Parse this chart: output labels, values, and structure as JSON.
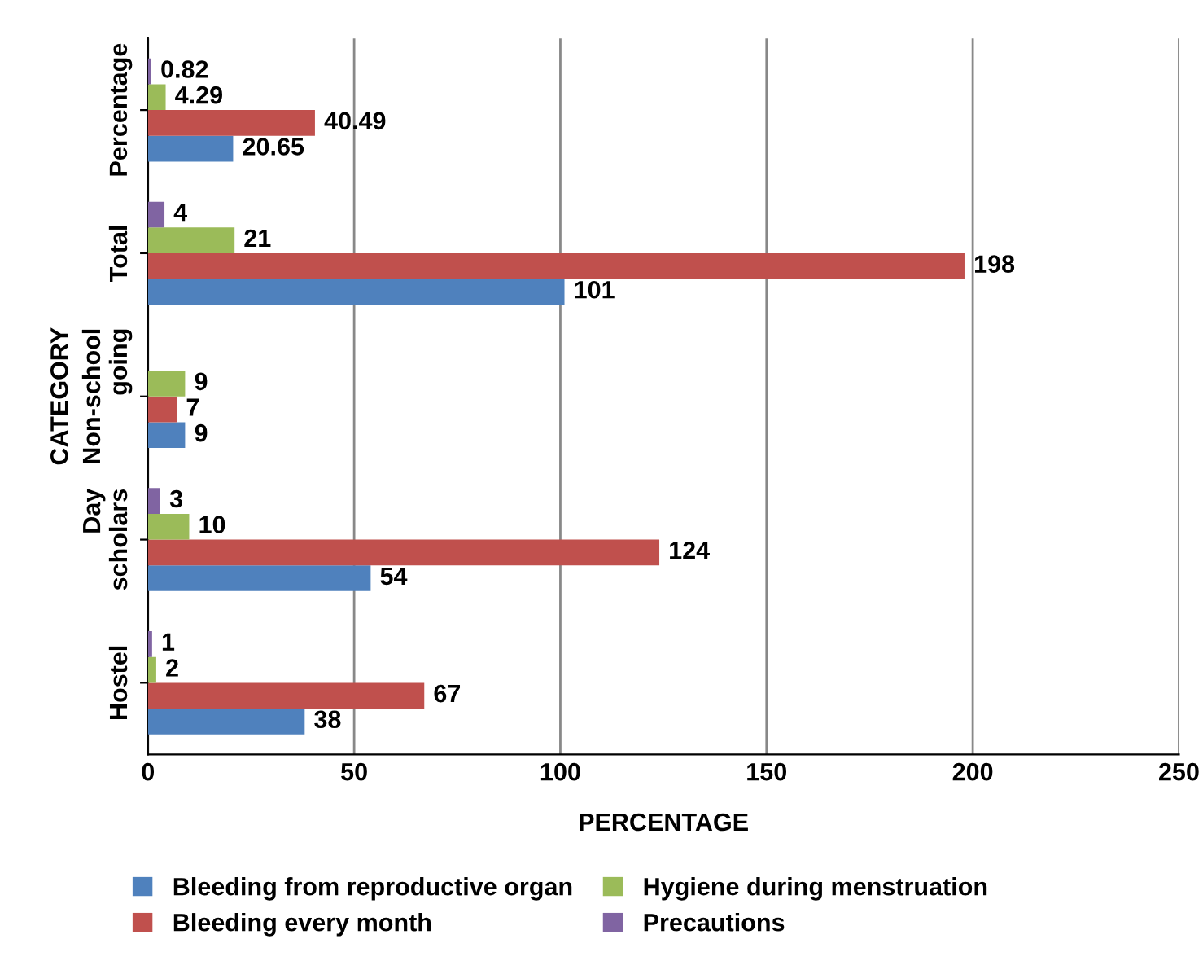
{
  "chart_data": {
    "type": "bar",
    "orientation": "horizontal",
    "xlabel": "PERCENTAGE",
    "ylabel": "CATEGORY",
    "categories": [
      "Percentage",
      "Total",
      "Non-school\ngoing",
      "Day\nscholars",
      "Hostel"
    ],
    "series": [
      {
        "name": "Bleeding from reproductive organ",
        "color": "#4f81bd",
        "values": [
          20.65,
          101,
          9,
          54,
          38
        ]
      },
      {
        "name": "Bleeding every month",
        "color": "#c0504d",
        "values": [
          40.49,
          198,
          7,
          124,
          67
        ]
      },
      {
        "name": "Hygiene during menstruation",
        "color": "#9bbb59",
        "values": [
          4.29,
          21,
          9,
          10,
          2
        ]
      },
      {
        "name": "Precautions",
        "color": "#8064a2",
        "values": [
          0.82,
          4,
          null,
          3,
          1
        ]
      }
    ],
    "xlim": [
      0,
      250
    ],
    "xticks": [
      0,
      50,
      100,
      150,
      200,
      250
    ],
    "grid": "x",
    "legend": "bottom",
    "data_labels": true
  }
}
